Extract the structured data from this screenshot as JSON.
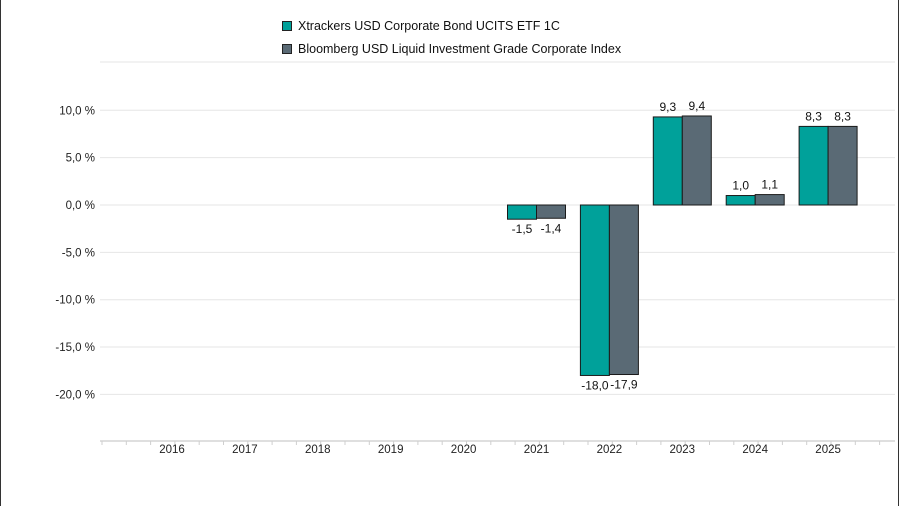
{
  "chart_data": {
    "type": "bar",
    "categories": [
      "2016",
      "2017",
      "2018",
      "2019",
      "2020",
      "2021",
      "2022",
      "2023",
      "2024",
      "2025"
    ],
    "series": [
      {
        "name": "Xtrackers USD Corporate Bond UCITS ETF 1C",
        "color": "#00a19a",
        "values": [
          null,
          null,
          null,
          null,
          null,
          -1.5,
          -18.0,
          9.3,
          1.0,
          8.3
        ],
        "labels": [
          "",
          "",
          "",
          "",
          "",
          "-1,5",
          "-18,0",
          "9,3",
          "1,0",
          "8,3"
        ]
      },
      {
        "name": "Bloomberg USD Liquid Investment Grade Corporate Index",
        "color": "#5a6a75",
        "values": [
          null,
          null,
          null,
          null,
          null,
          -1.4,
          -17.9,
          9.4,
          1.1,
          8.3
        ],
        "labels": [
          "",
          "",
          "",
          "",
          "",
          "-1,4",
          "-17,9",
          "9,4",
          "1,1",
          "8,3"
        ]
      }
    ],
    "y_ticks": [
      10,
      5,
      0,
      -5,
      -10,
      -15,
      -20
    ],
    "y_tick_labels": [
      "10,0 %",
      "5,0 %",
      "0,0 %",
      "-5,0 %",
      "-10,0 %",
      "-15,0 %",
      "-20,0 %"
    ],
    "ylim": [
      -25,
      15
    ],
    "grid": true,
    "legend_position": "top"
  }
}
